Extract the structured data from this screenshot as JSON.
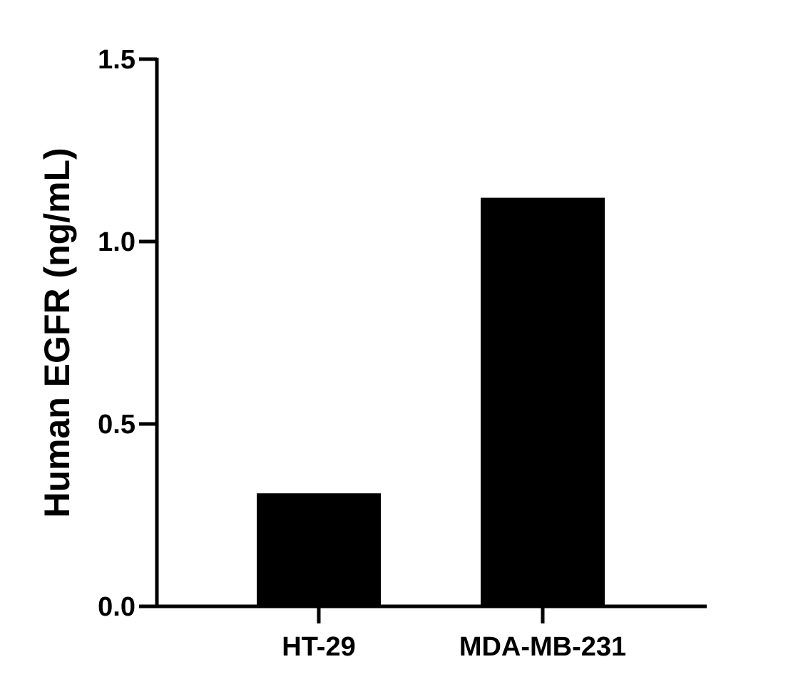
{
  "chart_data": {
    "type": "bar",
    "title": "",
    "xlabel": "",
    "ylabel": "Human EGFR (ng/mL)",
    "categories": [
      "HT-29",
      "MDA-MB-231"
    ],
    "values": [
      0.31,
      1.12
    ],
    "ylim": [
      0,
      1.5
    ],
    "yticks": [
      0,
      0.5,
      1,
      1.5
    ],
    "ytick_labels": [
      "0.0",
      "0.5",
      "1.0",
      "1.5"
    ],
    "grid": false,
    "legend": "none",
    "colors": {
      "bar": "#000000",
      "axis": "#000000",
      "background": "#ffffff"
    }
  }
}
